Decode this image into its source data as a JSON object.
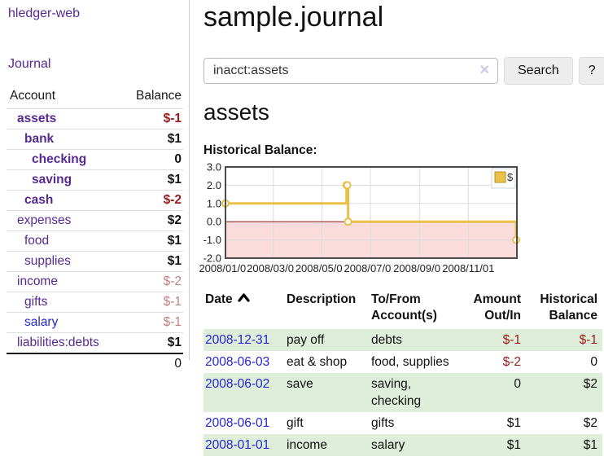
{
  "app": {
    "title": "hledger-web"
  },
  "sidebar": {
    "nav": {
      "journal_label": "Journal"
    },
    "accounts": {
      "headers": {
        "account": "Account",
        "balance": "Balance"
      },
      "rows": [
        {
          "name": "assets",
          "balance": "$-1"
        },
        {
          "name": "bank",
          "balance": "$1"
        },
        {
          "name": "checking",
          "balance": "0"
        },
        {
          "name": "saving",
          "balance": "$1"
        },
        {
          "name": "cash",
          "balance": "$-2"
        },
        {
          "name": "expenses",
          "balance": "$2"
        },
        {
          "name": "food",
          "balance": "$1"
        },
        {
          "name": "supplies",
          "balance": "$1"
        },
        {
          "name": "income",
          "balance": "$-2"
        },
        {
          "name": "gifts",
          "balance": "$-1"
        },
        {
          "name": "salary",
          "balance": "$-1"
        },
        {
          "name": "liabilities:debts",
          "balance": "$1"
        }
      ],
      "total": "0"
    }
  },
  "main": {
    "title": "sample.journal",
    "search": {
      "value": "inacct:assets",
      "clear_icon": "✕",
      "search_label": "Search",
      "help_label": "?"
    },
    "account_heading": "assets",
    "chart_label": "Historical Balance:"
  },
  "chart_data": {
    "type": "line",
    "title": "Historical Balance:",
    "step": true,
    "x_max_days": 366,
    "ylim": [
      -2,
      3
    ],
    "y_ticks": [
      3.0,
      2.0,
      1.0,
      0.0,
      -1.0,
      -2.0
    ],
    "x_ticks": [
      {
        "day": 0,
        "label": "2008/01/01"
      },
      {
        "day": 60,
        "label": "2008/03/01"
      },
      {
        "day": 121,
        "label": "2008/05/01"
      },
      {
        "day": 182,
        "label": "2008/07/01"
      },
      {
        "day": 244,
        "label": "2008/09/01"
      },
      {
        "day": 305,
        "label": "2008/11/01"
      }
    ],
    "series": [
      {
        "name": "$",
        "color": "#e8c04a",
        "points": [
          {
            "date": "2008-01-01",
            "day": 0,
            "value": 1
          },
          {
            "date": "2008-06-01",
            "day": 152,
            "value": 2
          },
          {
            "date": "2008-06-02",
            "day": 153,
            "value": 2
          },
          {
            "date": "2008-06-03",
            "day": 154,
            "value": 0
          },
          {
            "date": "2008-12-31",
            "day": 365,
            "value": -1
          }
        ]
      }
    ],
    "legend": {
      "position": "top-right",
      "label": "$"
    },
    "grid": true,
    "zero_line_color": "#8b1717",
    "negative_region_color": "#fbdcdc",
    "plot_border_color": "#4a4a4a",
    "gridline_color": "#dcdcdc",
    "marker_fill": "#ffffff"
  },
  "register": {
    "headers": {
      "date": "Date",
      "description": "Description",
      "accounts": "To/From Account(s)",
      "amount": "Amount Out/In",
      "balance": "Historical Balance"
    },
    "rows": [
      {
        "date": "2008-12-31",
        "description": "pay off",
        "accounts": "debts",
        "amount": "$-1",
        "balance": "$-1"
      },
      {
        "date": "2008-06-03",
        "description": "eat & shop",
        "accounts": "food, supplies",
        "amount": "$-2",
        "balance": "0"
      },
      {
        "date": "2008-06-02",
        "description": "save",
        "accounts": "saving, checking",
        "amount": "0",
        "balance": "$2"
      },
      {
        "date": "2008-06-01",
        "description": "gift",
        "accounts": "gifts",
        "amount": "$1",
        "balance": "$2"
      },
      {
        "date": "2008-01-01",
        "description": "income",
        "accounts": "salary",
        "amount": "$1",
        "balance": "$1"
      }
    ]
  },
  "colors": {
    "link_purple": "#552a93",
    "link_blue": "#2525d4",
    "negative_strong": "#9a1b1b",
    "negative_muted": "#c08080",
    "row_stripe_green": "#dfeeda",
    "button_bg": "#ededed",
    "sidebar_divider": "#cccccc"
  }
}
